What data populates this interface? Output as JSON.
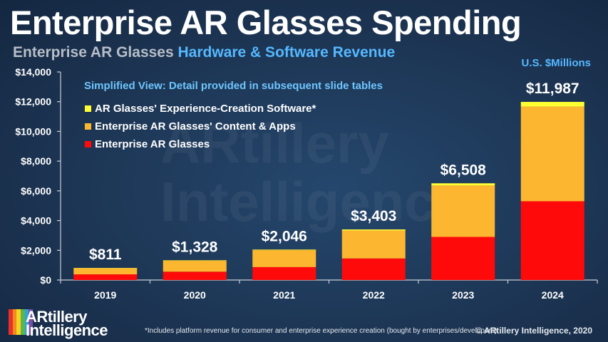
{
  "header": {
    "title": "Enterprise AR Glasses Spending",
    "subtitle_part1": "Enterprise AR Glasses",
    "subtitle_part2": "Hardware & Software Revenue",
    "units": "U.S. $Millions"
  },
  "footer": {
    "note": "*Includes platform revenue for consumer and enterprise experience creation (bought by enterprises/developers)",
    "copyright": "© ARtillery Intelligence, 2020",
    "logo_line1": "ARtillery",
    "logo_line2": "Intelligence"
  },
  "chart_data": {
    "type": "bar",
    "stacked": true,
    "annotation": "Simplified View: Detail provided in subsequent slide tables",
    "categories": [
      "2019",
      "2020",
      "2021",
      "2022",
      "2023",
      "2024"
    ],
    "series": [
      {
        "name": "Enterprise AR Glasses",
        "color": "#ff0a0a",
        "values": [
          380,
          560,
          870,
          1450,
          2900,
          5300
        ]
      },
      {
        "name": "Enterprise AR Glasses' Content & Apps",
        "color": "#fcb62f",
        "values": [
          411,
          740,
          1140,
          1880,
          3460,
          6370
        ]
      },
      {
        "name": "AR Glasses' Experience-Creation Software*",
        "color": "#ffff33",
        "values": [
          20,
          28,
          36,
          73,
          148,
          317
        ]
      }
    ],
    "totals": [
      "$811",
      "$1,328",
      "$2,046",
      "$3,403",
      "$6,508",
      "$11,987"
    ],
    "ylim": [
      0,
      14000
    ],
    "yticks": [
      0,
      2000,
      4000,
      6000,
      8000,
      10000,
      12000,
      14000
    ],
    "ytick_labels": [
      "$0",
      "$2,000",
      "$4,000",
      "$6,000",
      "$8,000",
      "$10,000",
      "$12,000",
      "$14,000"
    ],
    "legend_placement": "top-left",
    "grid": false
  },
  "watermark": {
    "line1": "ARtillery",
    "line2": "Intelligence"
  }
}
